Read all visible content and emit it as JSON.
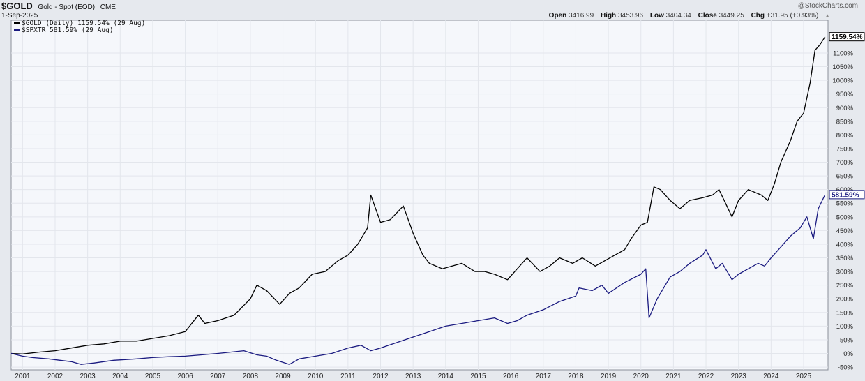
{
  "header": {
    "symbol": "$GOLD",
    "name": "Gold - Spot (EOD)",
    "exchange": "CME",
    "date": "1-Sep-2025",
    "watermark": "@StockCharts.com",
    "open_label": "Open",
    "open": "3416.99",
    "high_label": "High",
    "high": "3453.96",
    "low_label": "Low",
    "low": "3404.34",
    "close_label": "Close",
    "close": "3449.25",
    "chg_label": "Chg",
    "chg": "+31.95 (+0.93%)"
  },
  "legend": [
    {
      "label": "$GOLD (Daily) 1159.54% (29 Aug)",
      "color": "#000000"
    },
    {
      "label": "$SPXTR 581.59% (29 Aug)",
      "color": "#1a1a80"
    }
  ],
  "colors": {
    "background": "#e6e9ee",
    "plot_area": "#f5f7fb",
    "gold": "#000000",
    "spxtr": "#1a1a80"
  },
  "chart_data": {
    "type": "line",
    "ylim": [
      -60,
      1220
    ],
    "xlim": [
      2000.65,
      2025.75
    ],
    "grid": true,
    "y_ticks": [
      "-50%",
      "0%",
      "50%",
      "100%",
      "150%",
      "200%",
      "250%",
      "300%",
      "350%",
      "400%",
      "450%",
      "500%",
      "550%",
      "600%",
      "650%",
      "700%",
      "750%",
      "800%",
      "850%",
      "900%",
      "950%",
      "1000%",
      "1050%",
      "1100%"
    ],
    "y_tick_values": [
      -50,
      0,
      50,
      100,
      150,
      200,
      250,
      300,
      350,
      400,
      450,
      500,
      550,
      600,
      650,
      700,
      750,
      800,
      850,
      900,
      950,
      1000,
      1050,
      1100
    ],
    "x_ticks": [
      "2001",
      "2002",
      "2003",
      "2004",
      "2005",
      "2006",
      "2007",
      "2008",
      "2009",
      "2010",
      "2011",
      "2012",
      "2013",
      "2014",
      "2015",
      "2016",
      "2017",
      "2018",
      "2019",
      "2020",
      "2021",
      "2022",
      "2023",
      "2024",
      "2025"
    ],
    "last_value_labels": [
      "1159.54%",
      "581.59%"
    ],
    "series": [
      {
        "name": "$GOLD (Daily) 1159.54% (29 Aug)",
        "color": "#000000",
        "x": [
          2000.65,
          2001.0,
          2001.5,
          2002.0,
          2002.5,
          2003.0,
          2003.5,
          2004.0,
          2004.5,
          2005.0,
          2005.5,
          2006.0,
          2006.4,
          2006.6,
          2007.0,
          2007.5,
          2008.0,
          2008.2,
          2008.5,
          2008.9,
          2009.2,
          2009.5,
          2009.9,
          2010.3,
          2010.7,
          2011.0,
          2011.3,
          2011.6,
          2011.7,
          2012.0,
          2012.3,
          2012.7,
          2013.0,
          2013.3,
          2013.5,
          2013.9,
          2014.2,
          2014.5,
          2014.9,
          2015.2,
          2015.5,
          2015.9,
          2016.2,
          2016.5,
          2016.9,
          2017.2,
          2017.5,
          2017.9,
          2018.2,
          2018.6,
          2018.9,
          2019.2,
          2019.5,
          2019.7,
          2020.0,
          2020.2,
          2020.4,
          2020.6,
          2020.9,
          2021.2,
          2021.5,
          2021.9,
          2022.2,
          2022.4,
          2022.8,
          2023.0,
          2023.3,
          2023.7,
          2023.9,
          2024.1,
          2024.3,
          2024.6,
          2024.8,
          2025.0,
          2025.2,
          2025.35,
          2025.5,
          2025.66
        ],
        "values": [
          0,
          -2,
          5,
          10,
          20,
          30,
          35,
          45,
          45,
          55,
          65,
          80,
          140,
          110,
          120,
          140,
          200,
          250,
          230,
          180,
          220,
          240,
          290,
          300,
          340,
          360,
          400,
          460,
          580,
          480,
          490,
          540,
          440,
          360,
          330,
          310,
          320,
          330,
          300,
          300,
          290,
          270,
          310,
          350,
          300,
          320,
          350,
          330,
          350,
          320,
          340,
          360,
          380,
          420,
          470,
          480,
          610,
          600,
          560,
          530,
          560,
          570,
          580,
          600,
          500,
          560,
          600,
          580,
          560,
          620,
          700,
          780,
          850,
          880,
          990,
          1110,
          1130,
          1159.54
        ]
      },
      {
        "name": "$SPXTR 581.59% (29 Aug)",
        "color": "#1a1a80",
        "x": [
          2000.65,
          2001.0,
          2001.3,
          2001.8,
          2002.5,
          2002.8,
          2003.2,
          2003.8,
          2004.5,
          2005.0,
          2005.5,
          2006.0,
          2006.5,
          2007.0,
          2007.8,
          2008.2,
          2008.5,
          2008.8,
          2009.2,
          2009.5,
          2010.0,
          2010.5,
          2011.0,
          2011.4,
          2011.7,
          2012.0,
          2012.5,
          2013.0,
          2013.5,
          2014.0,
          2014.5,
          2015.0,
          2015.5,
          2015.9,
          2016.2,
          2016.5,
          2017.0,
          2017.5,
          2018.0,
          2018.1,
          2018.5,
          2018.8,
          2019.0,
          2019.5,
          2020.0,
          2020.15,
          2020.25,
          2020.5,
          2020.9,
          2021.2,
          2021.5,
          2021.9,
          2022.0,
          2022.3,
          2022.5,
          2022.8,
          2023.0,
          2023.3,
          2023.6,
          2023.8,
          2024.0,
          2024.3,
          2024.6,
          2024.9,
          2025.0,
          2025.1,
          2025.3,
          2025.45,
          2025.66
        ],
        "values": [
          0,
          -10,
          -15,
          -20,
          -30,
          -40,
          -35,
          -25,
          -20,
          -15,
          -12,
          -10,
          -5,
          0,
          10,
          -5,
          -10,
          -25,
          -40,
          -20,
          -10,
          0,
          20,
          30,
          10,
          20,
          40,
          60,
          80,
          100,
          110,
          120,
          130,
          110,
          120,
          140,
          160,
          190,
          210,
          240,
          230,
          250,
          220,
          260,
          290,
          310,
          130,
          200,
          280,
          300,
          330,
          360,
          380,
          310,
          330,
          270,
          290,
          310,
          330,
          320,
          350,
          390,
          430,
          460,
          480,
          500,
          420,
          530,
          581.59
        ]
      }
    ]
  }
}
